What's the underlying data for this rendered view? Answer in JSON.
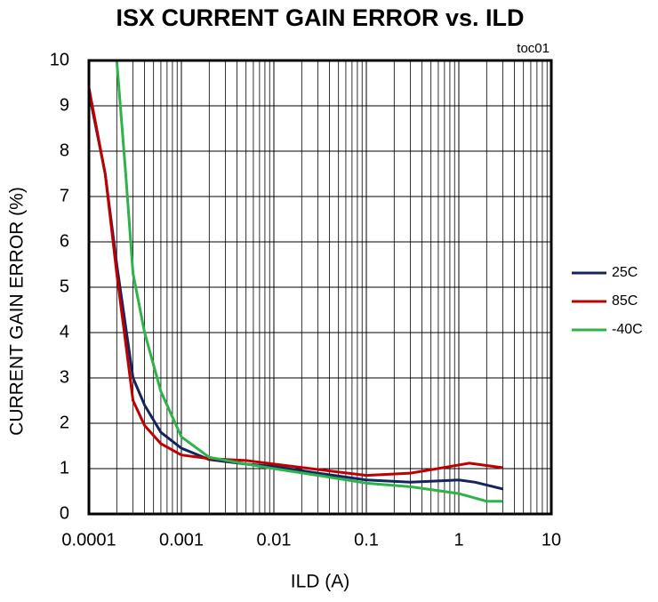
{
  "chart_data": {
    "type": "line",
    "title": "ISX CURRENT GAIN ERROR vs. ILD",
    "annotation": "toc01",
    "x_label": "ILD (A)",
    "y_label": "CURRENT GAIN ERROR  (%)",
    "xscale": "log",
    "xlim": [
      0.0001,
      10
    ],
    "xticks": [
      0.0001,
      0.001,
      0.01,
      0.1,
      1,
      10
    ],
    "ylim": [
      0,
      10
    ],
    "yticks": [
      0,
      1,
      2,
      3,
      4,
      5,
      6,
      7,
      8,
      9,
      10
    ],
    "grid": true,
    "legend": "right",
    "series": [
      {
        "name": "25C",
        "color": "#14245e",
        "x": [
          0.0001,
          0.00015,
          0.0002,
          0.0003,
          0.0004,
          0.0006,
          0.001,
          0.002,
          0.005,
          0.01,
          0.03,
          0.1,
          0.3,
          1,
          1.5,
          3
        ],
        "values": [
          9.3,
          7.5,
          5.5,
          3.0,
          2.4,
          1.8,
          1.45,
          1.2,
          1.1,
          1.05,
          0.9,
          0.75,
          0.7,
          0.75,
          0.7,
          0.55
        ]
      },
      {
        "name": "85C",
        "color": "#c00000",
        "x": [
          0.0001,
          0.00015,
          0.0002,
          0.0003,
          0.0004,
          0.0006,
          0.001,
          0.002,
          0.005,
          0.01,
          0.03,
          0.1,
          0.3,
          1,
          1.3,
          3
        ],
        "values": [
          9.4,
          7.5,
          5.3,
          2.5,
          1.95,
          1.55,
          1.3,
          1.22,
          1.18,
          1.1,
          0.98,
          0.85,
          0.9,
          1.08,
          1.12,
          1.02
        ]
      },
      {
        "name": "-40C",
        "color": "#2db34a",
        "x": [
          0.0002,
          0.00025,
          0.0003,
          0.0004,
          0.0006,
          0.001,
          0.002,
          0.005,
          0.01,
          0.03,
          0.1,
          0.3,
          1,
          2,
          3
        ],
        "values": [
          10,
          7.5,
          5.3,
          4.0,
          2.7,
          1.7,
          1.25,
          1.1,
          1.0,
          0.85,
          0.68,
          0.6,
          0.45,
          0.28,
          0.28
        ]
      }
    ]
  }
}
